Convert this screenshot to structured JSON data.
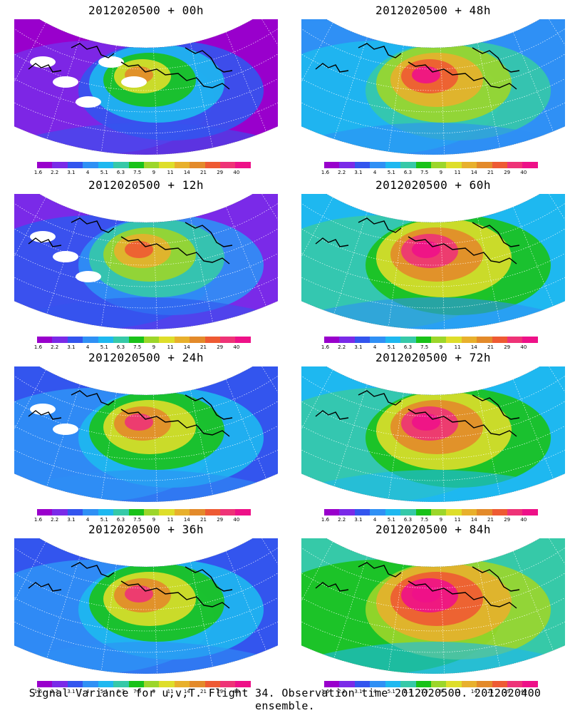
{
  "colors": {
    "scale": [
      "#9900cc",
      "#7a2ae8",
      "#3355ee",
      "#2f90f5",
      "#1eb8f0",
      "#36c9a8",
      "#19c219",
      "#9cd62a",
      "#dede2a",
      "#e8b02c",
      "#e38a2a",
      "#ee5a33",
      "#ee3377",
      "#ee1188"
    ],
    "land_outline": "#000000",
    "missing": "#ffffff"
  },
  "colorbar_labels": [
    "1.6",
    "2.2",
    "3.1",
    "4",
    "5.1",
    "6.3",
    "7.5",
    "9",
    "11",
    "14",
    "21",
    "29",
    "40"
  ],
  "panels": [
    {
      "title": "2012020500 + 00h",
      "intensity": 0.0
    },
    {
      "title": "2012020500 + 48h",
      "intensity": 0.6
    },
    {
      "title": "2012020500 + 12h",
      "intensity": 0.2
    },
    {
      "title": "2012020500 + 60h",
      "intensity": 0.72
    },
    {
      "title": "2012020500 + 24h",
      "intensity": 0.35
    },
    {
      "title": "2012020500 + 72h",
      "intensity": 0.85
    },
    {
      "title": "2012020500 + 36h",
      "intensity": 0.45
    },
    {
      "title": "2012020500 + 84h",
      "intensity": 0.95
    }
  ],
  "caption": "Signal Variance for u,v,T. Flight 34. Observation time 2012020500. 2012020400 ensemble."
}
